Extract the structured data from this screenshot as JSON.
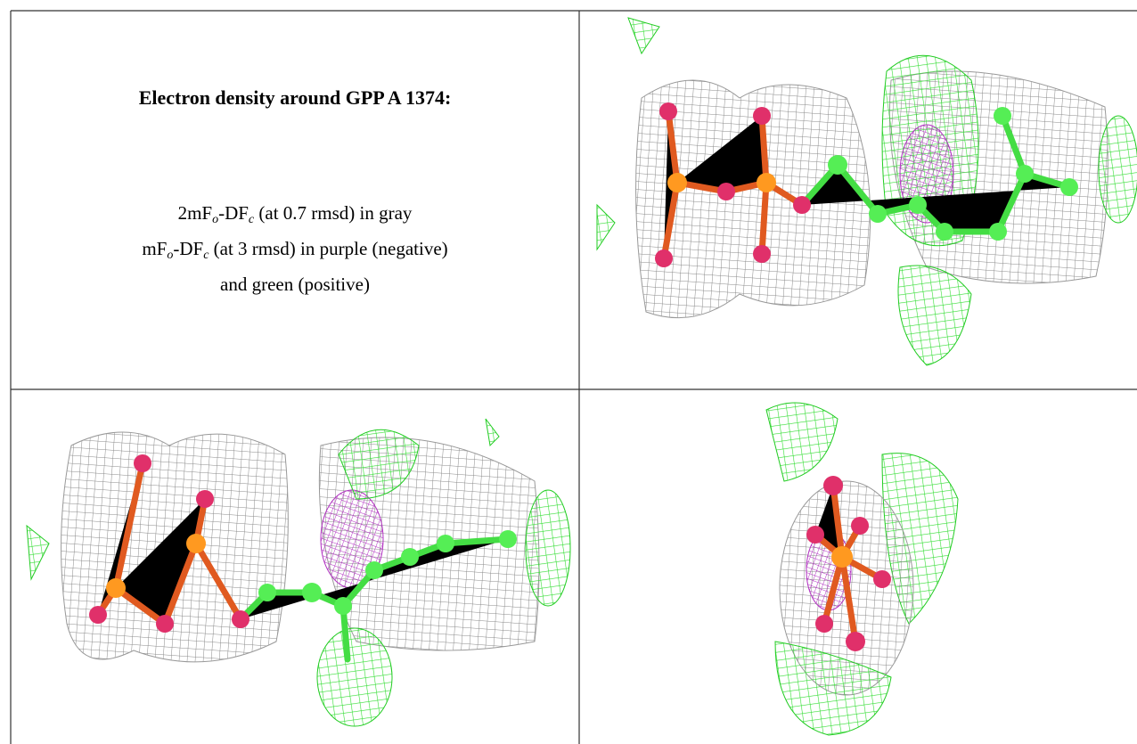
{
  "legend": {
    "title": "Electron density around GPP A 1374:",
    "lines": [
      [
        "2mF",
        "o",
        "-DF",
        "c",
        " (at 0.7 rmsd) in gray"
      ],
      [
        "mF",
        "o",
        "-DF",
        "c",
        " (at 3 rmsd) in purple (negative)"
      ],
      [
        "and green (positive)"
      ]
    ]
  }
}
